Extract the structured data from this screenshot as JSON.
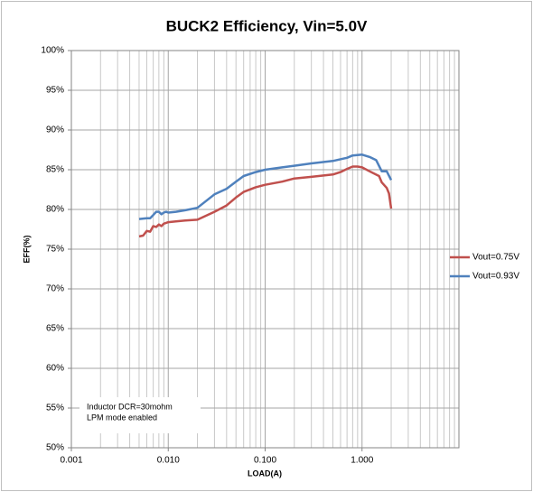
{
  "chart_data": {
    "type": "line",
    "title": "BUCK2 Efficiency, Vin=5.0V",
    "x_label": "LOAD(A)",
    "y_label": "EFF(%)",
    "annotation": [
      "Inductor DCR=30mohm",
      "LPM mode enabled"
    ],
    "x_log": true,
    "grid": true,
    "legend": "right",
    "xlim": [
      0.001,
      10
    ],
    "xticks": [
      0.001,
      {
        "value": 0.01,
        "label": "0.010"
      },
      {
        "value": 0.1,
        "label": "0.100"
      },
      {
        "value": 1,
        "label": "1.000"
      }
    ],
    "xminorticks": [
      0.002,
      0.003,
      0.004,
      0.005,
      0.006,
      0.007,
      0.008,
      0.009,
      0.02,
      0.03,
      0.04,
      0.05,
      0.06,
      0.07,
      0.08,
      0.09,
      0.2,
      0.3,
      0.4,
      0.5,
      0.6,
      0.7,
      0.8,
      0.9,
      2,
      3,
      4,
      5,
      6,
      7,
      8,
      9,
      10
    ],
    "ylim": [
      50,
      100
    ],
    "yticks": [
      {
        "value": 50,
        "label": "50%"
      },
      {
        "value": 55,
        "label": "55%"
      },
      {
        "value": 60,
        "label": "60%"
      },
      {
        "value": 65,
        "label": "65%"
      },
      {
        "value": 70,
        "label": "70%"
      },
      {
        "value": 75,
        "label": "75%"
      },
      {
        "value": 80,
        "label": "80%"
      },
      {
        "value": 85,
        "label": "85%"
      },
      {
        "value": 90,
        "label": "90%"
      },
      {
        "value": 95,
        "label": "95%"
      },
      {
        "value": 100,
        "label": "100%"
      }
    ],
    "series": [
      {
        "name": "Vout=0.75V",
        "color": "#c0504d",
        "x": [
          0.005,
          0.0055,
          0.006,
          0.0065,
          0.007,
          0.0075,
          0.008,
          0.0085,
          0.009,
          0.01,
          0.012,
          0.015,
          0.02,
          0.03,
          0.04,
          0.05,
          0.06,
          0.08,
          0.1,
          0.15,
          0.2,
          0.3,
          0.5,
          0.6,
          0.7,
          0.8,
          0.9,
          1.0,
          1.2,
          1.5,
          1.6,
          1.8,
          1.9,
          2.0
        ],
        "values": [
          76.6,
          76.7,
          77.3,
          77.2,
          77.9,
          77.8,
          78.1,
          77.9,
          78.2,
          78.4,
          78.5,
          78.6,
          78.7,
          79.7,
          80.5,
          81.5,
          82.2,
          82.8,
          83.1,
          83.5,
          83.9,
          84.1,
          84.4,
          84.7,
          85.1,
          85.4,
          85.4,
          85.3,
          84.8,
          84.2,
          83.4,
          82.7,
          82.0,
          80.1
        ]
      },
      {
        "name": "Vout=0.93V",
        "color": "#4f81bd",
        "x": [
          0.005,
          0.006,
          0.0065,
          0.007,
          0.0075,
          0.008,
          0.0085,
          0.009,
          0.0095,
          0.01,
          0.012,
          0.015,
          0.02,
          0.03,
          0.04,
          0.05,
          0.06,
          0.08,
          0.1,
          0.15,
          0.2,
          0.3,
          0.5,
          0.7,
          0.8,
          1.0,
          1.2,
          1.4,
          1.6,
          1.8,
          2.0
        ],
        "values": [
          78.8,
          78.9,
          78.9,
          79.3,
          79.7,
          79.7,
          79.4,
          79.6,
          79.7,
          79.6,
          79.7,
          79.9,
          80.2,
          81.9,
          82.6,
          83.5,
          84.2,
          84.7,
          85.0,
          85.3,
          85.5,
          85.8,
          86.1,
          86.5,
          86.8,
          86.9,
          86.6,
          86.2,
          84.8,
          84.8,
          83.7
        ]
      }
    ]
  }
}
